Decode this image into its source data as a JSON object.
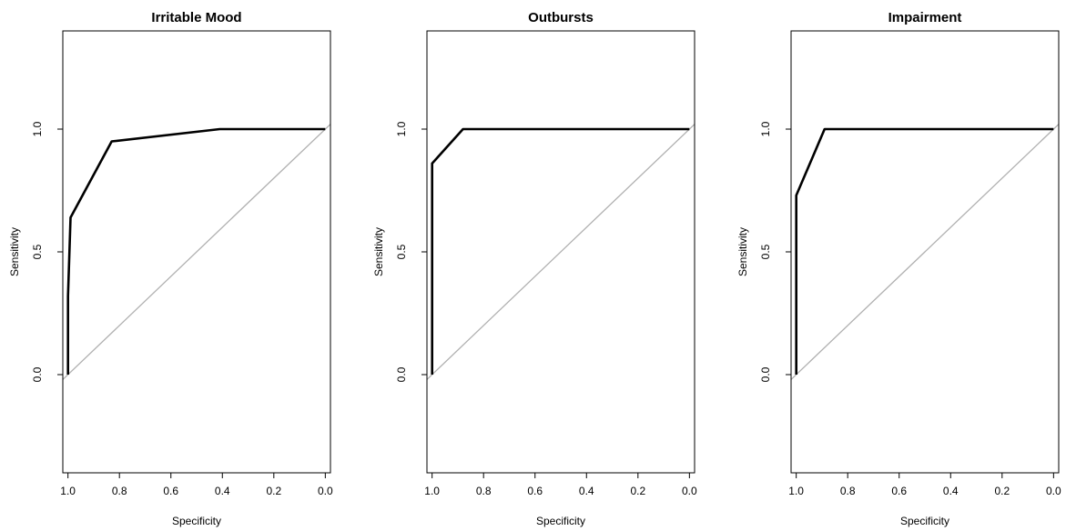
{
  "chart_data": [
    {
      "type": "line",
      "title": "Irritable Mood",
      "xlabel": "Specificity",
      "ylabel": "Sensitivity",
      "xlim": [
        1.02,
        -0.02
      ],
      "ylim": [
        -0.4,
        1.4
      ],
      "x_reversed": true,
      "xticks": [
        1.0,
        0.8,
        0.6,
        0.4,
        0.2,
        0.0
      ],
      "xtick_labels": [
        "1.0",
        "0.8",
        "0.6",
        "0.4",
        "0.2",
        "0.0"
      ],
      "yticks": [
        0.0,
        0.5,
        1.0
      ],
      "ytick_labels": [
        "0.0",
        "0.5",
        "1.0"
      ],
      "series": [
        {
          "specificity": [
            1.0,
            1.0,
            0.99,
            0.83,
            0.41,
            0.0
          ],
          "sensitivity": [
            0.0,
            0.32,
            0.64,
            0.95,
            1.0,
            1.0
          ],
          "color": "#000000"
        }
      ],
      "reference_line": {
        "from": [
          1.0,
          0.0
        ],
        "to": [
          0.0,
          1.0
        ],
        "color": "#b0b0b0"
      },
      "grid": false
    },
    {
      "type": "line",
      "title": "Outbursts",
      "xlabel": "Specificity",
      "ylabel": "Sensitivity",
      "xlim": [
        1.02,
        -0.02
      ],
      "ylim": [
        -0.4,
        1.4
      ],
      "x_reversed": true,
      "xticks": [
        1.0,
        0.8,
        0.6,
        0.4,
        0.2,
        0.0
      ],
      "xtick_labels": [
        "1.0",
        "0.8",
        "0.6",
        "0.4",
        "0.2",
        "0.0"
      ],
      "yticks": [
        0.0,
        0.5,
        1.0
      ],
      "ytick_labels": [
        "0.0",
        "0.5",
        "1.0"
      ],
      "series": [
        {
          "specificity": [
            1.0,
            1.0,
            0.88,
            0.0
          ],
          "sensitivity": [
            0.0,
            0.86,
            1.0,
            1.0
          ],
          "color": "#000000"
        }
      ],
      "reference_line": {
        "from": [
          1.0,
          0.0
        ],
        "to": [
          0.0,
          1.0
        ],
        "color": "#b0b0b0"
      },
      "grid": false
    },
    {
      "type": "line",
      "title": "Impairment",
      "xlabel": "Specificity",
      "ylabel": "Sensitivity",
      "xlim": [
        1.02,
        -0.02
      ],
      "ylim": [
        -0.4,
        1.4
      ],
      "x_reversed": true,
      "xticks": [
        1.0,
        0.8,
        0.6,
        0.4,
        0.2,
        0.0
      ],
      "xtick_labels": [
        "1.0",
        "0.8",
        "0.6",
        "0.4",
        "0.2",
        "0.0"
      ],
      "yticks": [
        0.0,
        0.5,
        1.0
      ],
      "ytick_labels": [
        "0.0",
        "0.5",
        "1.0"
      ],
      "series": [
        {
          "specificity": [
            1.0,
            1.0,
            0.89,
            0.0
          ],
          "sensitivity": [
            0.0,
            0.73,
            1.0,
            1.0
          ],
          "color": "#000000"
        }
      ],
      "reference_line": {
        "from": [
          1.0,
          0.0
        ],
        "to": [
          0.0,
          1.0
        ],
        "color": "#b0b0b0"
      },
      "grid": false
    }
  ]
}
